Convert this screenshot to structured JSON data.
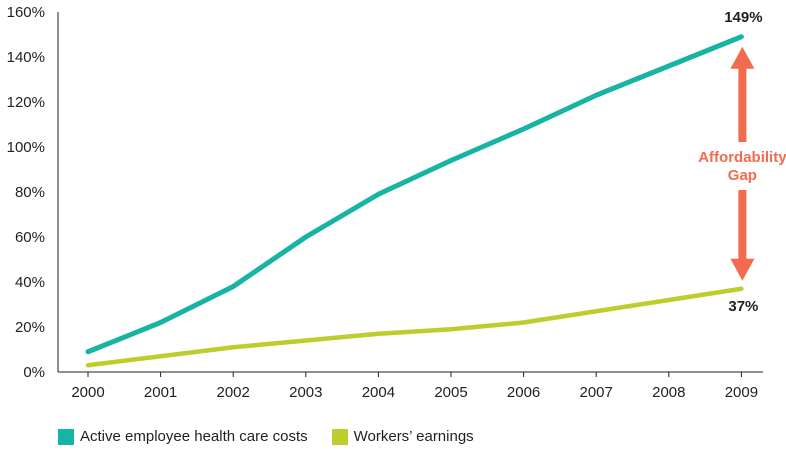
{
  "chart_data": {
    "type": "line",
    "title": "",
    "xlabel": "",
    "ylabel": "",
    "x": [
      "2000",
      "2001",
      "2002",
      "2003",
      "2004",
      "2005",
      "2006",
      "2007",
      "2008",
      "2009"
    ],
    "ylim": [
      0,
      160
    ],
    "yticks": [
      "0%",
      "20%",
      "40%",
      "60%",
      "80%",
      "100%",
      "120%",
      "140%",
      "160%"
    ],
    "series": [
      {
        "name": "Active employee health care costs",
        "color": "#17b3a5",
        "values": [
          9,
          22,
          38,
          60,
          79,
          94,
          108,
          123,
          136,
          149
        ]
      },
      {
        "name": "Workers’ earnings",
        "color": "#bccd2d",
        "values": [
          3,
          7,
          11,
          14,
          17,
          19,
          22,
          27,
          32,
          37
        ]
      }
    ],
    "end_labels": {
      "health": "149%",
      "earnings": "37%"
    },
    "annotation": {
      "line1": "Affordability",
      "line2": "Gap",
      "color": "#f26b4f"
    },
    "legend_position": "bottom-left",
    "grid": false
  }
}
